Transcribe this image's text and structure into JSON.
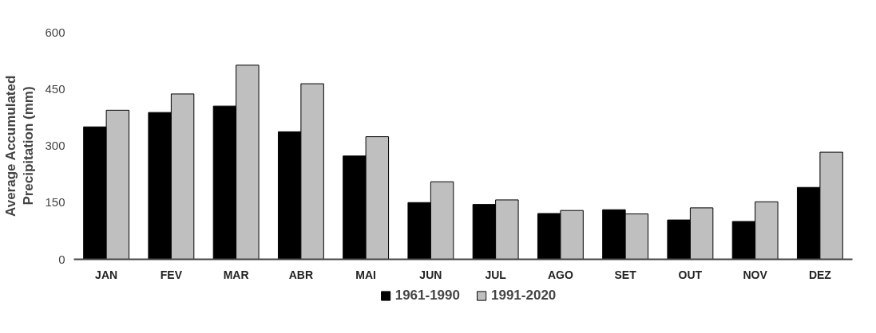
{
  "chart_data": {
    "type": "bar",
    "ylabel": "Average Accumulated\nPrecipitation (mm)",
    "categories": [
      "JAN",
      "FEV",
      "MAR",
      "ABR",
      "MAI",
      "JUN",
      "JUL",
      "AGO",
      "SET",
      "OUT",
      "NOV",
      "DEZ"
    ],
    "series": [
      {
        "name": "1961-1990",
        "color": "#000000",
        "values": [
          350,
          388,
          405,
          337,
          273,
          150,
          145,
          121,
          131,
          104,
          100,
          190
        ]
      },
      {
        "name": "1991-2020",
        "color": "#bfbfbf",
        "values": [
          394,
          437,
          513,
          464,
          324,
          205,
          157,
          129,
          120,
          136,
          152,
          283
        ]
      }
    ],
    "ylim": [
      0,
      600
    ],
    "yticks": [
      0,
      150,
      300,
      450,
      600
    ],
    "grid": false,
    "legend": "bottom"
  }
}
